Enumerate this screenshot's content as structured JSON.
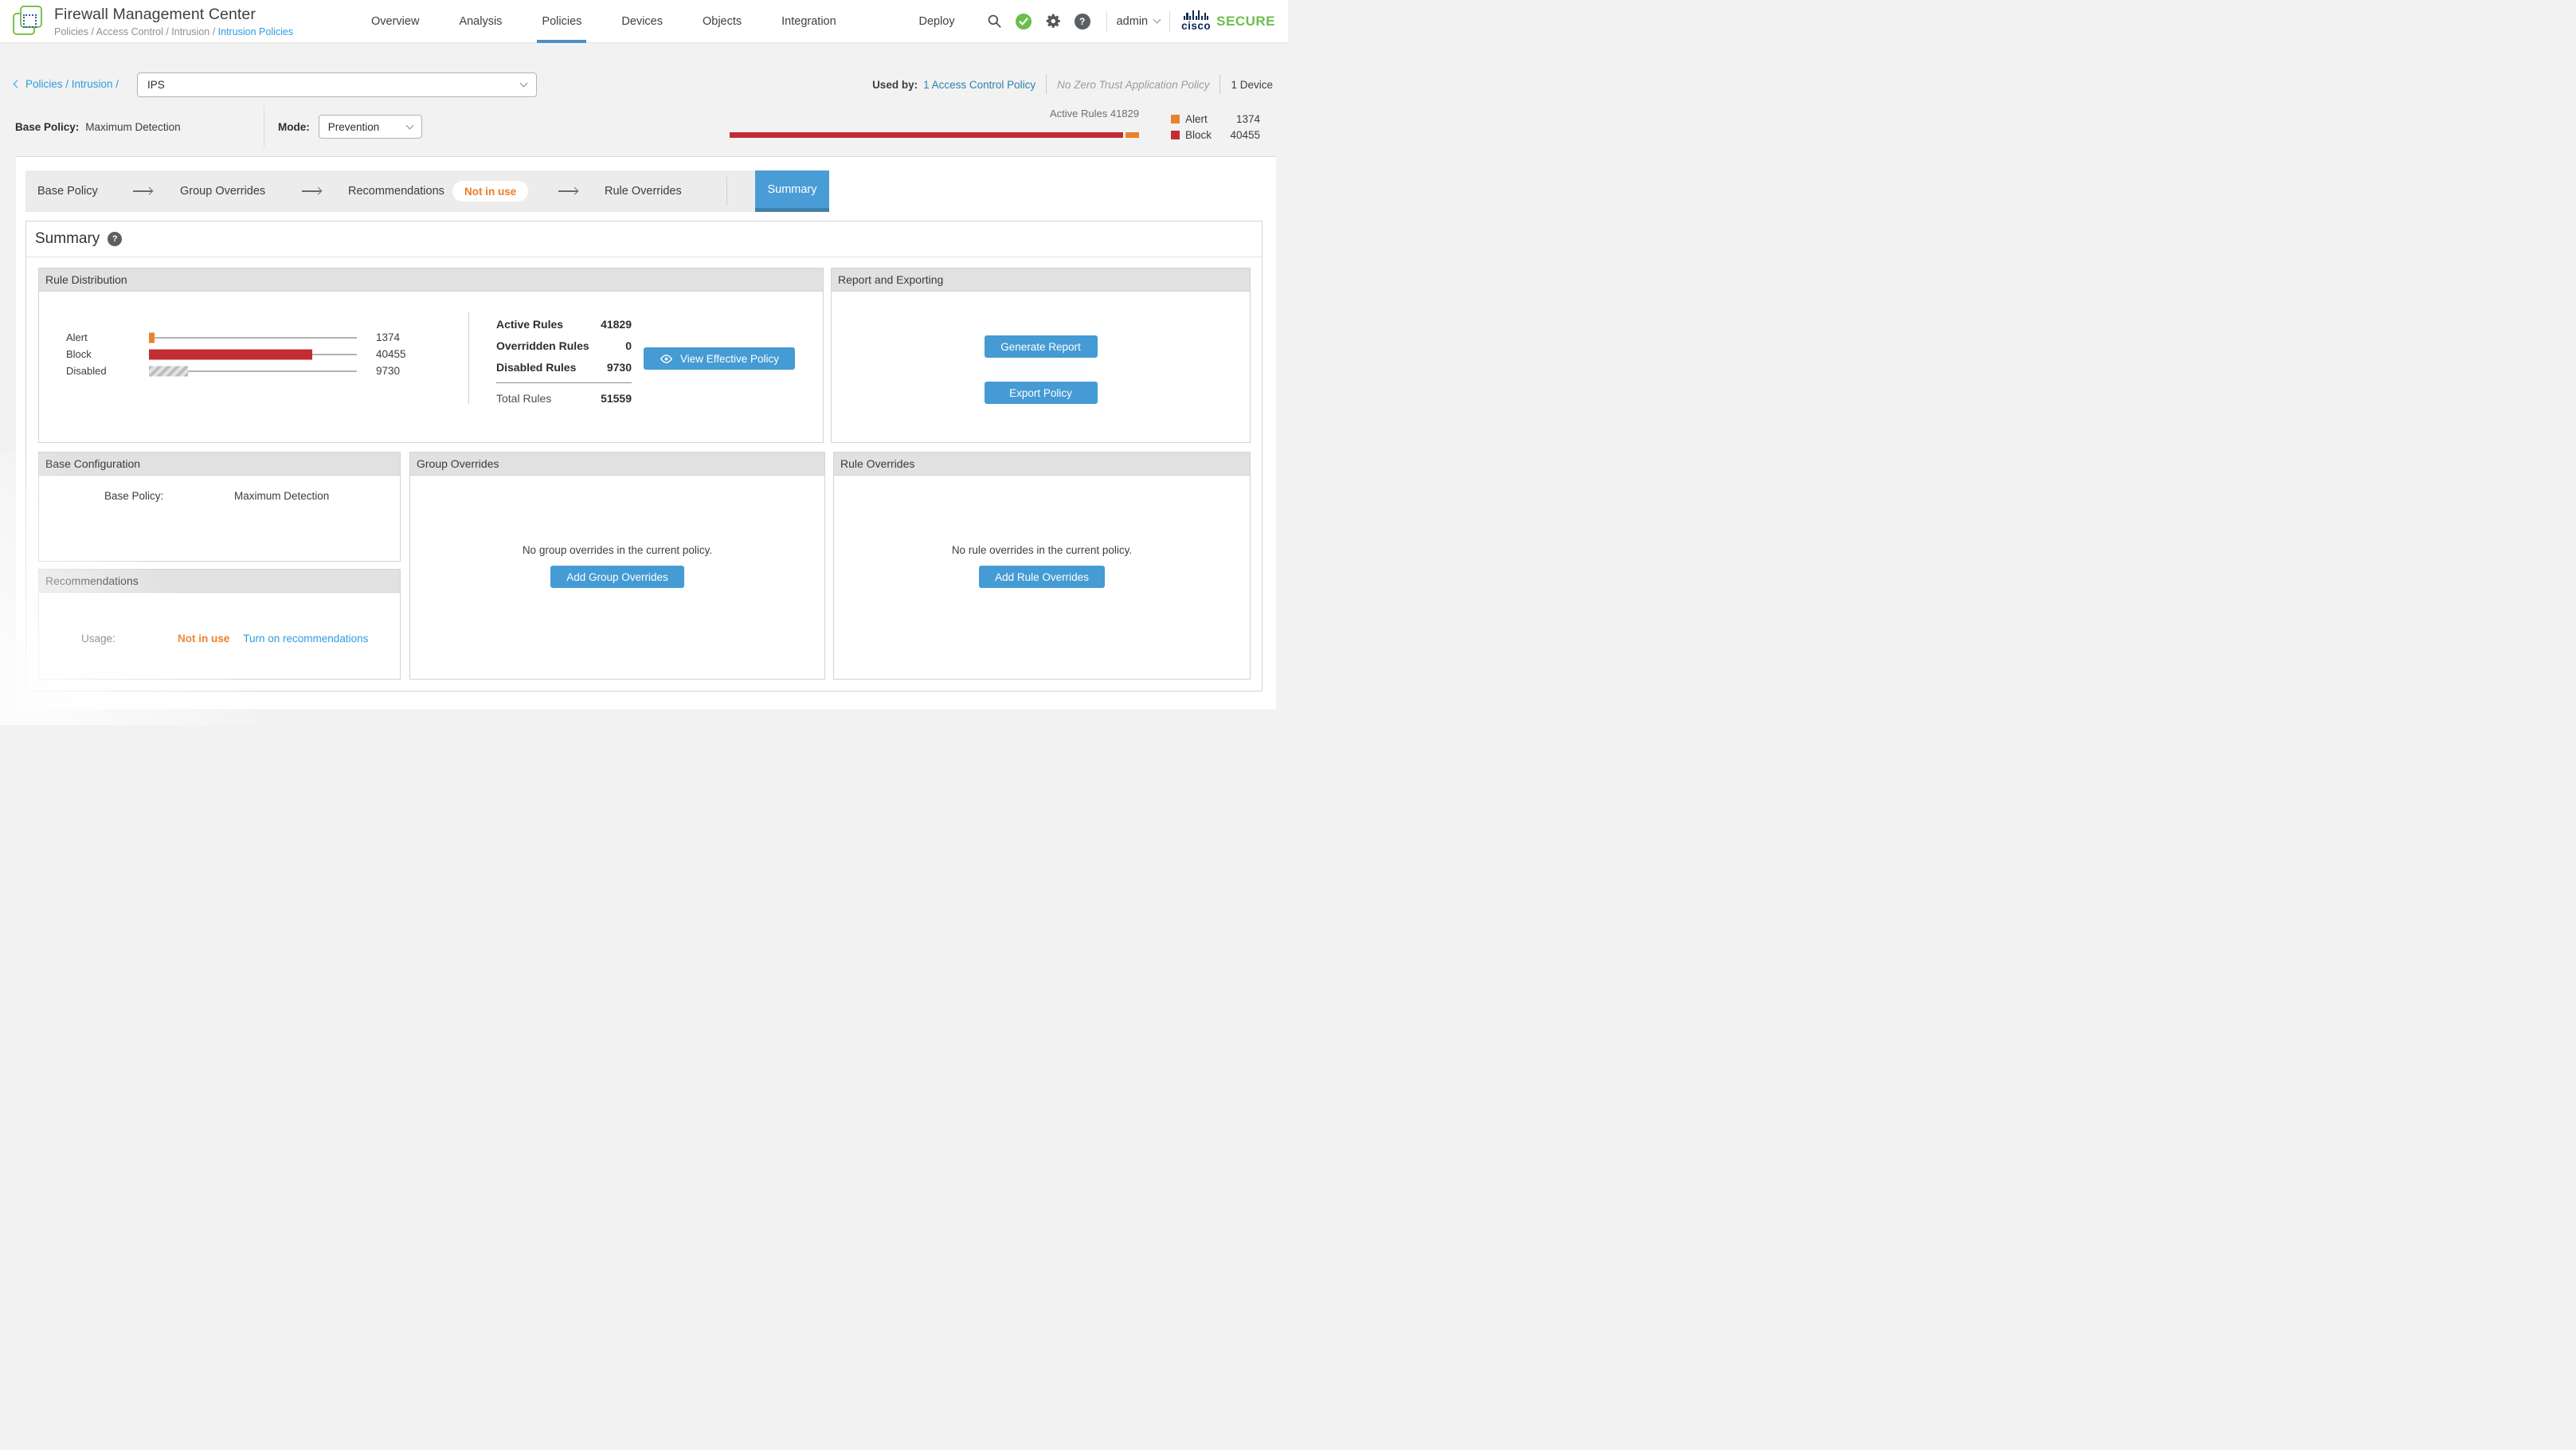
{
  "colors": {
    "accent_blue": "#4a9cd6",
    "tab_border_blue": "#3e82aa",
    "button_blue": "#459bd4",
    "link_blue": "#2f9ce0",
    "steel_link_blue": "#2c80ad",
    "alert_orange": "#e8832c",
    "block_red": "#c22d33",
    "brand_green": "#6cbf4c",
    "cisco_navy": "#0d2b52"
  },
  "header": {
    "title": "Firewall Management Center",
    "breadcrumb_prefix": "Policies / Access Control / Intrusion / ",
    "breadcrumb_current": "Intrusion Policies",
    "nav": [
      {
        "label": "Overview",
        "active": false
      },
      {
        "label": "Analysis",
        "active": false
      },
      {
        "label": "Policies",
        "active": true
      },
      {
        "label": "Devices",
        "active": false
      },
      {
        "label": "Objects",
        "active": false
      },
      {
        "label": "Integration",
        "active": false
      }
    ],
    "deploy_label": "Deploy",
    "user_label": "admin",
    "brand_cisco": "cisco",
    "brand_secure": "SECURE"
  },
  "policy_bar": {
    "back_link": "Policies / Intrusion /",
    "policy_name": "IPS",
    "used_by_label": "Used by:",
    "used_by_link": "1 Access Control Policy",
    "zero_trust_note": "No Zero Trust Application Policy",
    "device_count": "1 Device"
  },
  "base_policy_bar": {
    "base_policy_label": "Base Policy:",
    "base_policy_value": "Maximum Detection",
    "mode_label": "Mode:",
    "mode_value": "Prevention",
    "active_rules_caption": "Active Rules 41829",
    "meter": {
      "active": 41829,
      "alert": 1374,
      "block": 40455
    },
    "legend": [
      {
        "label": "Alert",
        "value": "1374",
        "color": "#e8832c"
      },
      {
        "label": "Block",
        "value": "40455",
        "color": "#c22d33"
      }
    ]
  },
  "tabs": {
    "base_policy": "Base Policy",
    "group_overrides": "Group Overrides",
    "recommendations": "Recommendations",
    "recommendations_badge": "Not in use",
    "rule_overrides": "Rule Overrides",
    "summary": "Summary"
  },
  "summary": {
    "heading": "Summary"
  },
  "panels": {
    "rule_distribution": {
      "title": "Rule Distribution",
      "total": 51559,
      "rows": [
        {
          "label": "Alert",
          "value": 1374,
          "display": "1374",
          "color": "#e8832c"
        },
        {
          "label": "Block",
          "value": 40455,
          "display": "40455",
          "color": "#c22d33"
        },
        {
          "label": "Disabled",
          "value": 9730,
          "display": "9730",
          "pattern": "hatch"
        }
      ],
      "stats": [
        {
          "label": "Active Rules",
          "value": "41829"
        },
        {
          "label": "Overridden Rules",
          "value": "0"
        },
        {
          "label": "Disabled Rules",
          "value": "9730"
        }
      ],
      "total_label": "Total Rules",
      "total_value": "51559",
      "view_effective_button": "View Effective Policy"
    },
    "report": {
      "title": "Report and Exporting",
      "generate_button": "Generate Report",
      "export_button": "Export Policy"
    },
    "base_configuration": {
      "title": "Base Configuration",
      "row_label": "Base Policy:",
      "row_value": "Maximum Detection"
    },
    "recommendations": {
      "title": "Recommendations",
      "usage_label": "Usage:",
      "usage_status": "Not in use",
      "turn_on_link": "Turn on recommendations"
    },
    "group_overrides": {
      "title": "Group Overrides",
      "empty_text": "No group overrides in the current policy.",
      "add_button": "Add Group Overrides"
    },
    "rule_overrides": {
      "title": "Rule Overrides",
      "empty_text": "No rule overrides in the current policy.",
      "add_button": "Add Rule Overrides"
    }
  }
}
